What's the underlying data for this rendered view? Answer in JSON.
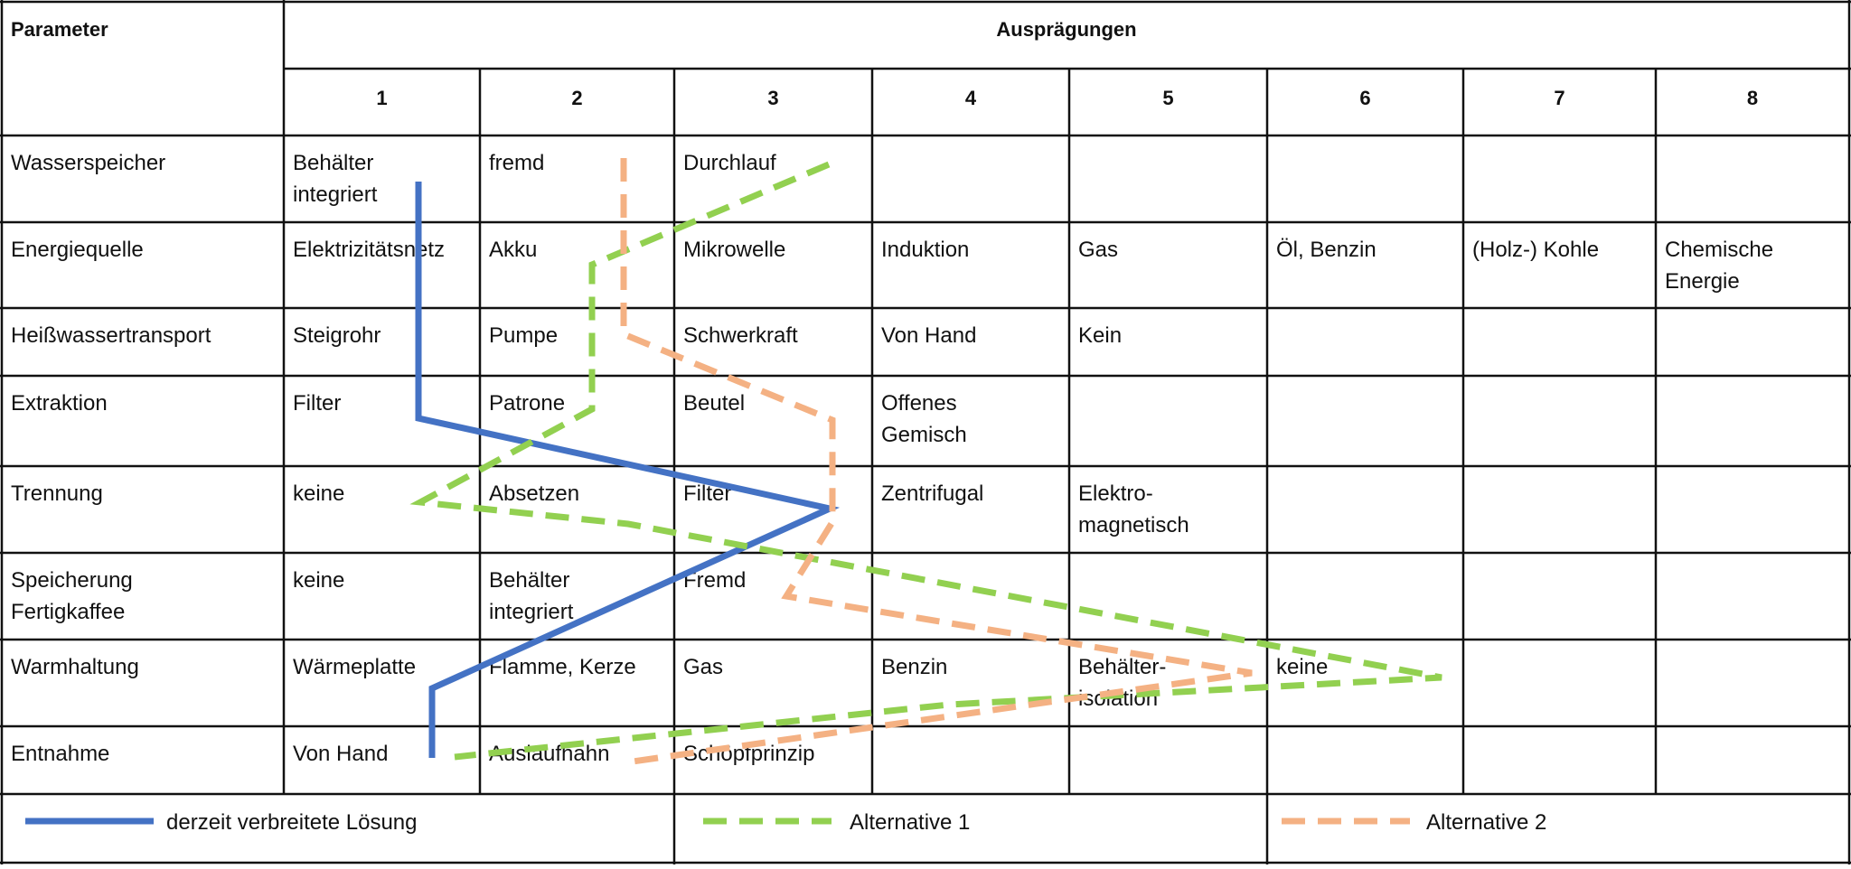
{
  "header": {
    "parameter_label": "Parameter",
    "values_label": "Ausprägungen",
    "columns": [
      "1",
      "2",
      "3",
      "4",
      "5",
      "6",
      "7",
      "8"
    ]
  },
  "rows": [
    {
      "parameter": [
        "Wasserspeicher"
      ],
      "values": [
        [
          "Behälter",
          "integriert"
        ],
        [
          "fremd"
        ],
        [
          "Durchlauf"
        ],
        [],
        [],
        [],
        [],
        []
      ]
    },
    {
      "parameter": [
        "Energiequelle"
      ],
      "values": [
        [
          "Elektrizitätsnetz"
        ],
        [
          "Akku"
        ],
        [
          "Mikrowelle"
        ],
        [
          "Induktion"
        ],
        [
          "Gas"
        ],
        [
          "Öl, Benzin"
        ],
        [
          "(Holz-) Kohle"
        ],
        [
          "Chemische",
          "Energie"
        ]
      ]
    },
    {
      "parameter": [
        "Heißwassertransport"
      ],
      "values": [
        [
          "Steigrohr"
        ],
        [
          "Pumpe"
        ],
        [
          "Schwerkraft"
        ],
        [
          "Von Hand"
        ],
        [
          "Kein"
        ],
        [],
        [],
        []
      ]
    },
    {
      "parameter": [
        "Extraktion"
      ],
      "values": [
        [
          "Filter"
        ],
        [
          "Patrone"
        ],
        [
          "Beutel"
        ],
        [
          "Offenes",
          "Gemisch"
        ],
        [],
        [],
        [],
        []
      ]
    },
    {
      "parameter": [
        "Trennung"
      ],
      "values": [
        [
          "keine"
        ],
        [
          "Absetzen"
        ],
        [
          "Filter"
        ],
        [
          "Zentrifugal"
        ],
        [
          "Elektro-",
          "magnetisch"
        ],
        [],
        [],
        []
      ]
    },
    {
      "parameter": [
        "Speicherung",
        "Fertigkaffee"
      ],
      "values": [
        [
          "keine"
        ],
        [
          "Behälter",
          "integriert"
        ],
        [
          "Fremd"
        ],
        [],
        [],
        [],
        [],
        []
      ]
    },
    {
      "parameter": [
        "Warmhaltung"
      ],
      "values": [
        [
          "Wärmeplatte"
        ],
        [
          "Flamme, Kerze"
        ],
        [
          "Gas"
        ],
        [
          "Benzin"
        ],
        [
          "Behälter-",
          "isolation"
        ],
        [
          "keine"
        ],
        [],
        []
      ]
    },
    {
      "parameter": [
        "Entnahme"
      ],
      "values": [
        [
          "Von Hand"
        ],
        [
          "Auslaufhahn"
        ],
        [
          "Schöpfprinzip"
        ],
        [],
        [],
        [],
        [],
        []
      ]
    }
  ],
  "legend": [
    {
      "label": "derzeit verbreitete Lösung",
      "color": "#4472c4",
      "style": "solid"
    },
    {
      "label": "Alternative 1",
      "color": "#92d050",
      "style": "dashed"
    },
    {
      "label": "Alternative 2",
      "color": "#f4b183",
      "style": "dashed"
    }
  ]
}
